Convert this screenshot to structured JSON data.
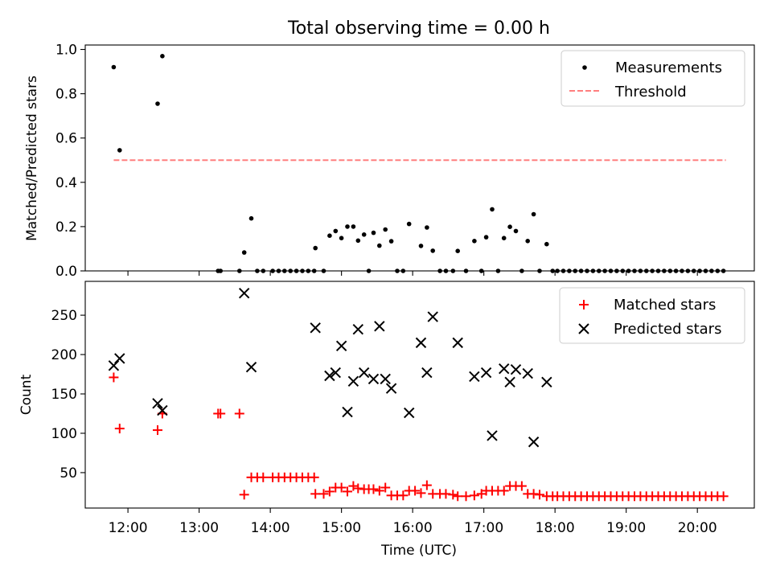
{
  "figure": {
    "title": "Total observing time = 0.00 h"
  },
  "chart_data": [
    {
      "type": "scatter",
      "title": "Total observing time = 0.00 h",
      "xlabel": "",
      "ylabel": "Matched/Predicted stars",
      "xlim": [
        "11:24",
        "20:48"
      ],
      "ylim": [
        0,
        1.02
      ],
      "yticks": [
        "0.0",
        "0.2",
        "0.4",
        "0.6",
        "0.8",
        "1.0"
      ],
      "legend": {
        "position": "top-right",
        "entries": [
          "Measurements",
          "Threshold"
        ]
      },
      "series": [
        {
          "name": "Measurements",
          "marker": "dot",
          "color": "#000000",
          "points": [
            [
              "11:48",
              0.92
            ],
            [
              "11:53",
              0.545
            ],
            [
              "12:25",
              0.755
            ],
            [
              "12:29",
              0.97
            ],
            [
              "13:16",
              0.0
            ],
            [
              "13:18",
              0.0
            ],
            [
              "13:34",
              0.0
            ],
            [
              "13:38",
              0.083
            ],
            [
              "13:44",
              0.237
            ],
            [
              "13:49",
              0.0
            ],
            [
              "13:54",
              0.0
            ],
            [
              "14:02",
              0.0
            ],
            [
              "14:07",
              0.0
            ],
            [
              "14:12",
              0.0
            ],
            [
              "14:17",
              0.0
            ],
            [
              "14:22",
              0.0
            ],
            [
              "14:27",
              0.0
            ],
            [
              "14:32",
              0.0
            ],
            [
              "14:37",
              0.0
            ],
            [
              "14:38",
              0.103
            ],
            [
              "14:45",
              0.0
            ],
            [
              "14:50",
              0.159
            ],
            [
              "14:55",
              0.18
            ],
            [
              "15:00",
              0.148
            ],
            [
              "15:05",
              0.2
            ],
            [
              "15:10",
              0.2
            ],
            [
              "15:14",
              0.137
            ],
            [
              "15:19",
              0.164
            ],
            [
              "15:23",
              0.0
            ],
            [
              "15:27",
              0.172
            ],
            [
              "15:32",
              0.114
            ],
            [
              "15:37",
              0.187
            ],
            [
              "15:42",
              0.134
            ],
            [
              "15:47",
              0.0
            ],
            [
              "15:52",
              0.0
            ],
            [
              "15:57",
              0.212
            ],
            [
              "16:07",
              0.113
            ],
            [
              "16:12",
              0.196
            ],
            [
              "16:17",
              0.091
            ],
            [
              "16:23",
              0.0
            ],
            [
              "16:28",
              0.0
            ],
            [
              "16:34",
              0.0
            ],
            [
              "16:38",
              0.09
            ],
            [
              "16:45",
              0.0
            ],
            [
              "16:52",
              0.135
            ],
            [
              "16:58",
              0.0
            ],
            [
              "17:02",
              0.152
            ],
            [
              "17:07",
              0.278
            ],
            [
              "17:12",
              0.0
            ],
            [
              "17:17",
              0.148
            ],
            [
              "17:22",
              0.199
            ],
            [
              "17:27",
              0.18
            ],
            [
              "17:32",
              0.0
            ],
            [
              "17:37",
              0.135
            ],
            [
              "17:42",
              0.256
            ],
            [
              "17:47",
              0.0
            ],
            [
              "17:53",
              0.121
            ],
            [
              "17:58",
              0.0
            ],
            [
              "18:02",
              0.0
            ],
            [
              "18:07",
              0.0
            ],
            [
              "18:12",
              0.0
            ],
            [
              "18:17",
              0.0
            ],
            [
              "18:22",
              0.0
            ],
            [
              "18:27",
              0.0
            ],
            [
              "18:32",
              0.0
            ],
            [
              "18:37",
              0.0
            ],
            [
              "18:42",
              0.0
            ],
            [
              "18:47",
              0.0
            ],
            [
              "18:52",
              0.0
            ],
            [
              "18:57",
              0.0
            ],
            [
              "19:02",
              0.0
            ],
            [
              "19:07",
              0.0
            ],
            [
              "19:12",
              0.0
            ],
            [
              "19:17",
              0.0
            ],
            [
              "19:22",
              0.0
            ],
            [
              "19:27",
              0.0
            ],
            [
              "19:32",
              0.0
            ],
            [
              "19:37",
              0.0
            ],
            [
              "19:42",
              0.0
            ],
            [
              "19:47",
              0.0
            ],
            [
              "19:52",
              0.0
            ],
            [
              "19:57",
              0.0
            ],
            [
              "20:02",
              0.0
            ],
            [
              "20:07",
              0.0
            ],
            [
              "20:12",
              0.0
            ],
            [
              "20:17",
              0.0
            ],
            [
              "20:22",
              0.0
            ]
          ]
        },
        {
          "name": "Threshold",
          "type": "line",
          "style": "dashed",
          "color": "#ff7f7f",
          "points": [
            [
              "11:48",
              0.5
            ],
            [
              "20:24",
              0.5
            ]
          ]
        }
      ]
    },
    {
      "type": "scatter",
      "title": "",
      "xlabel": "Time (UTC)",
      "ylabel": "Count",
      "xlim": [
        "11:24",
        "20:48"
      ],
      "ylim": [
        5,
        293
      ],
      "yticks": [
        "50",
        "100",
        "150",
        "200",
        "250"
      ],
      "xticks": [
        "12:00",
        "13:00",
        "14:00",
        "15:00",
        "16:00",
        "17:00",
        "18:00",
        "19:00",
        "20:00"
      ],
      "legend": {
        "position": "top-right",
        "entries": [
          "Matched stars",
          "Predicted stars"
        ]
      },
      "series": [
        {
          "name": "Matched stars",
          "marker": "plus",
          "color": "#ff0000",
          "points": [
            [
              "11:48",
              171
            ],
            [
              "11:53",
              106
            ],
            [
              "12:25",
              104
            ],
            [
              "12:29",
              125
            ],
            [
              "13:16",
              125
            ],
            [
              "13:18",
              125
            ],
            [
              "13:34",
              125
            ],
            [
              "13:38",
              22
            ],
            [
              "13:44",
              44
            ],
            [
              "13:49",
              44
            ],
            [
              "13:54",
              44
            ],
            [
              "14:02",
              44
            ],
            [
              "14:07",
              44
            ],
            [
              "14:12",
              44
            ],
            [
              "14:17",
              44
            ],
            [
              "14:22",
              44
            ],
            [
              "14:27",
              44
            ],
            [
              "14:32",
              44
            ],
            [
              "14:37",
              44
            ],
            [
              "14:38",
              23
            ],
            [
              "14:45",
              23
            ],
            [
              "14:50",
              26
            ],
            [
              "14:55",
              31
            ],
            [
              "15:00",
              31
            ],
            [
              "15:05",
              26
            ],
            [
              "15:10",
              33
            ],
            [
              "15:14",
              30
            ],
            [
              "15:19",
              29
            ],
            [
              "15:23",
              29
            ],
            [
              "15:27",
              29
            ],
            [
              "15:32",
              27
            ],
            [
              "15:37",
              31
            ],
            [
              "15:42",
              21
            ],
            [
              "15:47",
              21
            ],
            [
              "15:52",
              21
            ],
            [
              "15:57",
              27
            ],
            [
              "16:02",
              27
            ],
            [
              "16:07",
              24
            ],
            [
              "16:12",
              34
            ],
            [
              "16:17",
              23
            ],
            [
              "16:23",
              23
            ],
            [
              "16:28",
              23
            ],
            [
              "16:34",
              22
            ],
            [
              "16:38",
              20
            ],
            [
              "16:45",
              20
            ],
            [
              "16:52",
              21
            ],
            [
              "16:58",
              23
            ],
            [
              "17:02",
              27
            ],
            [
              "17:07",
              27
            ],
            [
              "17:12",
              27
            ],
            [
              "17:17",
              27
            ],
            [
              "17:22",
              33
            ],
            [
              "17:27",
              33
            ],
            [
              "17:32",
              33
            ],
            [
              "17:37",
              23
            ],
            [
              "17:42",
              23
            ],
            [
              "17:47",
              22
            ],
            [
              "17:53",
              20
            ],
            [
              "17:58",
              20
            ],
            [
              "18:02",
              20
            ],
            [
              "18:07",
              20
            ],
            [
              "18:12",
              20
            ],
            [
              "18:17",
              20
            ],
            [
              "18:22",
              20
            ],
            [
              "18:27",
              20
            ],
            [
              "18:32",
              20
            ],
            [
              "18:37",
              20
            ],
            [
              "18:42",
              20
            ],
            [
              "18:47",
              20
            ],
            [
              "18:52",
              20
            ],
            [
              "18:57",
              20
            ],
            [
              "19:02",
              20
            ],
            [
              "19:07",
              20
            ],
            [
              "19:12",
              20
            ],
            [
              "19:17",
              20
            ],
            [
              "19:22",
              20
            ],
            [
              "19:27",
              20
            ],
            [
              "19:32",
              20
            ],
            [
              "19:37",
              20
            ],
            [
              "19:42",
              20
            ],
            [
              "19:47",
              20
            ],
            [
              "19:52",
              20
            ],
            [
              "19:57",
              20
            ],
            [
              "20:02",
              20
            ],
            [
              "20:07",
              20
            ],
            [
              "20:12",
              20
            ],
            [
              "20:17",
              20
            ],
            [
              "20:22",
              20
            ]
          ]
        },
        {
          "name": "Predicted stars",
          "marker": "x",
          "color": "#000000",
          "points": [
            [
              "11:48",
              186
            ],
            [
              "11:53",
              195
            ],
            [
              "12:25",
              138
            ],
            [
              "12:29",
              129
            ],
            [
              "13:38",
              278
            ],
            [
              "13:44",
              184
            ],
            [
              "14:38",
              234
            ],
            [
              "14:50",
              173
            ],
            [
              "14:55",
              177
            ],
            [
              "15:00",
              211
            ],
            [
              "15:05",
              127
            ],
            [
              "15:10",
              166
            ],
            [
              "15:14",
              232
            ],
            [
              "15:19",
              177
            ],
            [
              "15:27",
              169
            ],
            [
              "15:32",
              236
            ],
            [
              "15:37",
              169
            ],
            [
              "15:42",
              157
            ],
            [
              "15:57",
              126
            ],
            [
              "16:07",
              215
            ],
            [
              "16:12",
              177
            ],
            [
              "16:17",
              248
            ],
            [
              "16:38",
              215
            ],
            [
              "16:52",
              172
            ],
            [
              "17:02",
              177
            ],
            [
              "17:07",
              97
            ],
            [
              "17:17",
              182
            ],
            [
              "17:22",
              165
            ],
            [
              "17:27",
              181
            ],
            [
              "17:37",
              176
            ],
            [
              "17:42",
              89
            ],
            [
              "17:53",
              165
            ]
          ]
        }
      ]
    }
  ]
}
